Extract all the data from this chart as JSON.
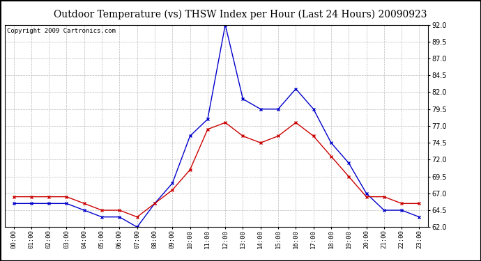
{
  "title": "Outdoor Temperature (vs) THSW Index per Hour (Last 24 Hours) 20090923",
  "copyright": "Copyright 2009 Cartronics.com",
  "hours": [
    "00:00",
    "01:00",
    "02:00",
    "03:00",
    "04:00",
    "05:00",
    "06:00",
    "07:00",
    "08:00",
    "09:00",
    "10:00",
    "11:00",
    "12:00",
    "13:00",
    "14:00",
    "15:00",
    "16:00",
    "17:00",
    "18:00",
    "19:00",
    "20:00",
    "21:00",
    "22:00",
    "23:00"
  ],
  "temp_red": [
    66.5,
    66.5,
    66.5,
    66.5,
    65.5,
    64.5,
    64.5,
    63.5,
    65.5,
    67.5,
    70.5,
    76.5,
    77.5,
    75.5,
    74.5,
    75.5,
    77.5,
    75.5,
    72.5,
    69.5,
    66.5,
    66.5,
    65.5,
    65.5
  ],
  "thsw_blue": [
    65.5,
    65.5,
    65.5,
    65.5,
    64.5,
    63.5,
    63.5,
    62.0,
    65.5,
    68.5,
    75.5,
    78.0,
    92.0,
    81.0,
    79.5,
    79.5,
    82.5,
    79.5,
    74.5,
    71.5,
    67.0,
    64.5,
    64.5,
    63.5
  ],
  "ylim": [
    62.0,
    92.0
  ],
  "yticks": [
    62.0,
    64.5,
    67.0,
    69.5,
    72.0,
    74.5,
    77.0,
    79.5,
    82.0,
    84.5,
    87.0,
    89.5,
    92.0
  ],
  "red_color": "#cc0000",
  "blue_color": "#0000cc",
  "bg_color": "#ffffff",
  "grid_color": "#bbbbbb",
  "title_fontsize": 10,
  "copyright_fontsize": 6.5
}
